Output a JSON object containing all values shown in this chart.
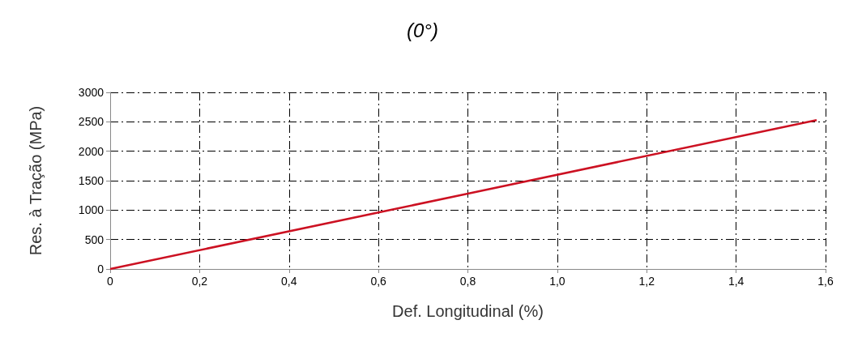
{
  "chart_data": {
    "type": "line",
    "title": "(0°)",
    "xlabel": "Def. Longitudinal (%)",
    "ylabel": "Res. à Tração (MPa)",
    "series": [
      {
        "color": "#cc1122",
        "x": [
          0,
          0.8,
          1.58
        ],
        "values": [
          0,
          1280,
          2530
        ]
      }
    ],
    "xlim": [
      0,
      1.6
    ],
    "xticks": [
      0,
      {
        "value": 0.2,
        "label": "0,2"
      },
      {
        "value": 0.4,
        "label": "0,4"
      },
      {
        "value": 0.6,
        "label": "0,6"
      },
      {
        "value": 0.8,
        "label": "0,8"
      },
      {
        "value": 1.0,
        "label": "1,0"
      },
      {
        "value": 1.2,
        "label": "1,2"
      },
      {
        "value": 1.4,
        "label": "1,4"
      },
      {
        "value": 1.6,
        "label": "1,6"
      }
    ],
    "ylim": [
      0,
      3000
    ],
    "yticks": [
      0,
      500,
      1000,
      1500,
      2000,
      2500,
      3000
    ],
    "grid": true,
    "marker": "none",
    "line_style": "solid"
  }
}
